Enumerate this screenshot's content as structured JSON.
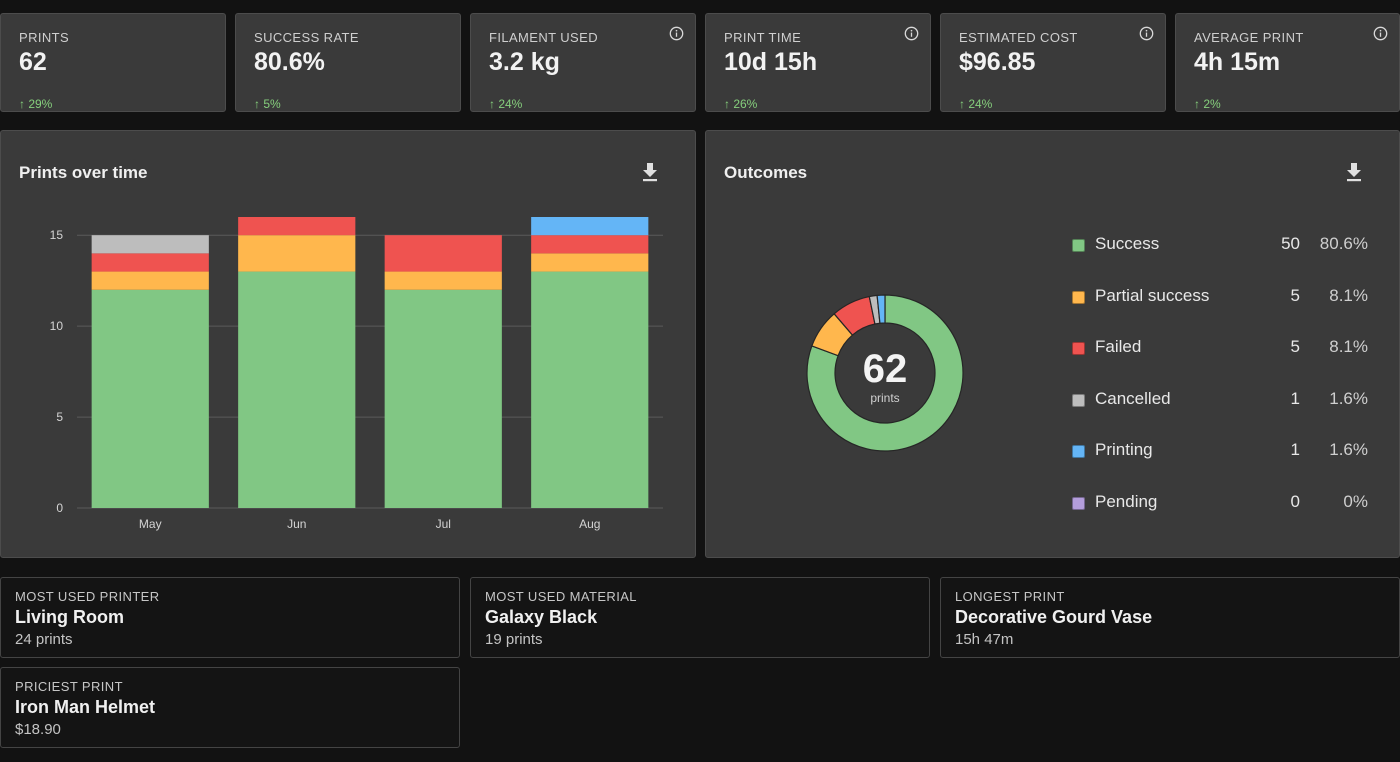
{
  "stats": [
    {
      "label": "PRINTS",
      "value": "62",
      "change": "↑ 29%",
      "info": false
    },
    {
      "label": "SUCCESS RATE",
      "value": "80.6%",
      "change": "↑ 5%",
      "info": false
    },
    {
      "label": "FILAMENT USED",
      "value": "3.2 kg",
      "change": "↑ 24%",
      "info": true
    },
    {
      "label": "PRINT TIME",
      "value": "10d 15h",
      "change": "↑ 26%",
      "info": true
    },
    {
      "label": "ESTIMATED COST",
      "value": "$96.85",
      "change": "↑ 24%",
      "info": true
    },
    {
      "label": "AVERAGE PRINT",
      "value": "4h 15m",
      "change": "↑ 2%",
      "info": true
    }
  ],
  "prints_panel": {
    "title": "Prints over time",
    "download_icon": "download-icon"
  },
  "outcomes_panel": {
    "title": "Outcomes",
    "download_icon": "download-icon",
    "center_value": "62",
    "center_label": "prints",
    "legend": [
      {
        "name": "Success",
        "count": "50",
        "pct": "80.6%",
        "color": "#81c784"
      },
      {
        "name": "Partial success",
        "count": "5",
        "pct": "8.1%",
        "color": "#ffb74d"
      },
      {
        "name": "Failed",
        "count": "5",
        "pct": "8.1%",
        "color": "#ef5350"
      },
      {
        "name": "Cancelled",
        "count": "1",
        "pct": "1.6%",
        "color": "#bdbdbd"
      },
      {
        "name": "Printing",
        "count": "1",
        "pct": "1.6%",
        "color": "#64b5f6"
      },
      {
        "name": "Pending",
        "count": "0",
        "pct": "0%",
        "color": "#b39ddb"
      }
    ]
  },
  "chart_data": [
    {
      "type": "bar",
      "stacked": true,
      "title": "Prints over time",
      "categories": [
        "May",
        "Jun",
        "Jul",
        "Aug"
      ],
      "yticks": [
        0,
        5,
        10,
        15
      ],
      "ylim": [
        0,
        16
      ],
      "grid": true,
      "series": [
        {
          "name": "Success",
          "color": "#81c784",
          "values": [
            12,
            13,
            12,
            13
          ]
        },
        {
          "name": "Partial success",
          "color": "#ffb74d",
          "values": [
            1,
            2,
            1,
            1
          ]
        },
        {
          "name": "Failed",
          "color": "#ef5350",
          "values": [
            1,
            1,
            2,
            1
          ]
        },
        {
          "name": "Cancelled",
          "color": "#bdbdbd",
          "values": [
            1,
            0,
            0,
            0
          ]
        },
        {
          "name": "Printing",
          "color": "#64b5f6",
          "values": [
            0,
            0,
            0,
            1
          ]
        }
      ]
    },
    {
      "type": "pie",
      "donut": true,
      "title": "Outcomes",
      "categories": [
        "Success",
        "Partial success",
        "Failed",
        "Cancelled",
        "Printing",
        "Pending"
      ],
      "values": [
        50,
        5,
        5,
        1,
        1,
        0
      ],
      "colors": [
        "#81c784",
        "#ffb74d",
        "#ef5350",
        "#bdbdbd",
        "#64b5f6",
        "#b39ddb"
      ]
    }
  ],
  "highlights": [
    {
      "label": "MOST USED PRINTER",
      "value": "Living Room",
      "sub": "24 prints"
    },
    {
      "label": "MOST USED MATERIAL",
      "value": "Galaxy Black",
      "sub": "19 prints"
    },
    {
      "label": "LONGEST PRINT",
      "value": "Decorative Gourd Vase",
      "sub": "15h 47m"
    },
    {
      "label": "PRICIEST PRINT",
      "value": "Iron Man Helmet",
      "sub": "$18.90"
    }
  ]
}
